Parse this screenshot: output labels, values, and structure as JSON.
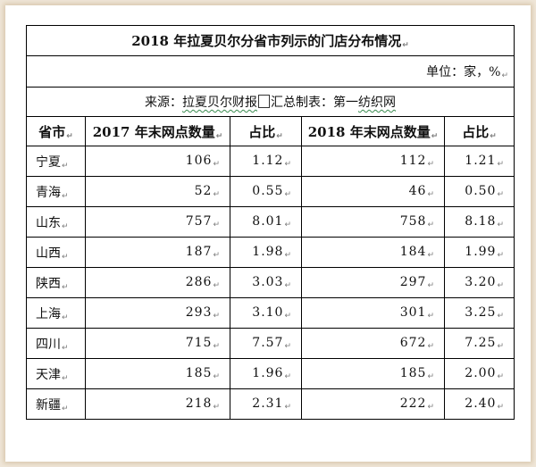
{
  "title": "2018 年拉夏贝尔分省市列示的门店分布情况",
  "unit": "单位：家，%",
  "source": {
    "prefix": "来源：",
    "part1": "拉夏贝尔财报",
    "part2": "汇总制表：第一",
    "part3": "纺织网"
  },
  "paragraph_mark": "↵",
  "columns": [
    "省市",
    "2017 年末网点数量",
    "占比",
    "2018 年末网点数量",
    "占比"
  ],
  "rows": [
    {
      "province": "宁夏",
      "count_2017": "106",
      "share_2017": "1.12",
      "count_2018": "112",
      "share_2018": "1.21"
    },
    {
      "province": "青海",
      "count_2017": "52",
      "share_2017": "0.55",
      "count_2018": "46",
      "share_2018": "0.50"
    },
    {
      "province": "山东",
      "count_2017": "757",
      "share_2017": "8.01",
      "count_2018": "758",
      "share_2018": "8.18"
    },
    {
      "province": "山西",
      "count_2017": "187",
      "share_2017": "1.98",
      "count_2018": "184",
      "share_2018": "1.99"
    },
    {
      "province": "陕西",
      "count_2017": "286",
      "share_2017": "3.03",
      "count_2018": "297",
      "share_2018": "3.20"
    },
    {
      "province": "上海",
      "count_2017": "293",
      "share_2017": "3.10",
      "count_2018": "301",
      "share_2018": "3.25"
    },
    {
      "province": "四川",
      "count_2017": "715",
      "share_2017": "7.57",
      "count_2018": "672",
      "share_2018": "7.25"
    },
    {
      "province": "天津",
      "count_2017": "185",
      "share_2017": "1.96",
      "count_2018": "185",
      "share_2018": "2.00"
    },
    {
      "province": "新疆",
      "count_2017": "218",
      "share_2017": "2.31",
      "count_2018": "222",
      "share_2018": "2.40"
    }
  ]
}
